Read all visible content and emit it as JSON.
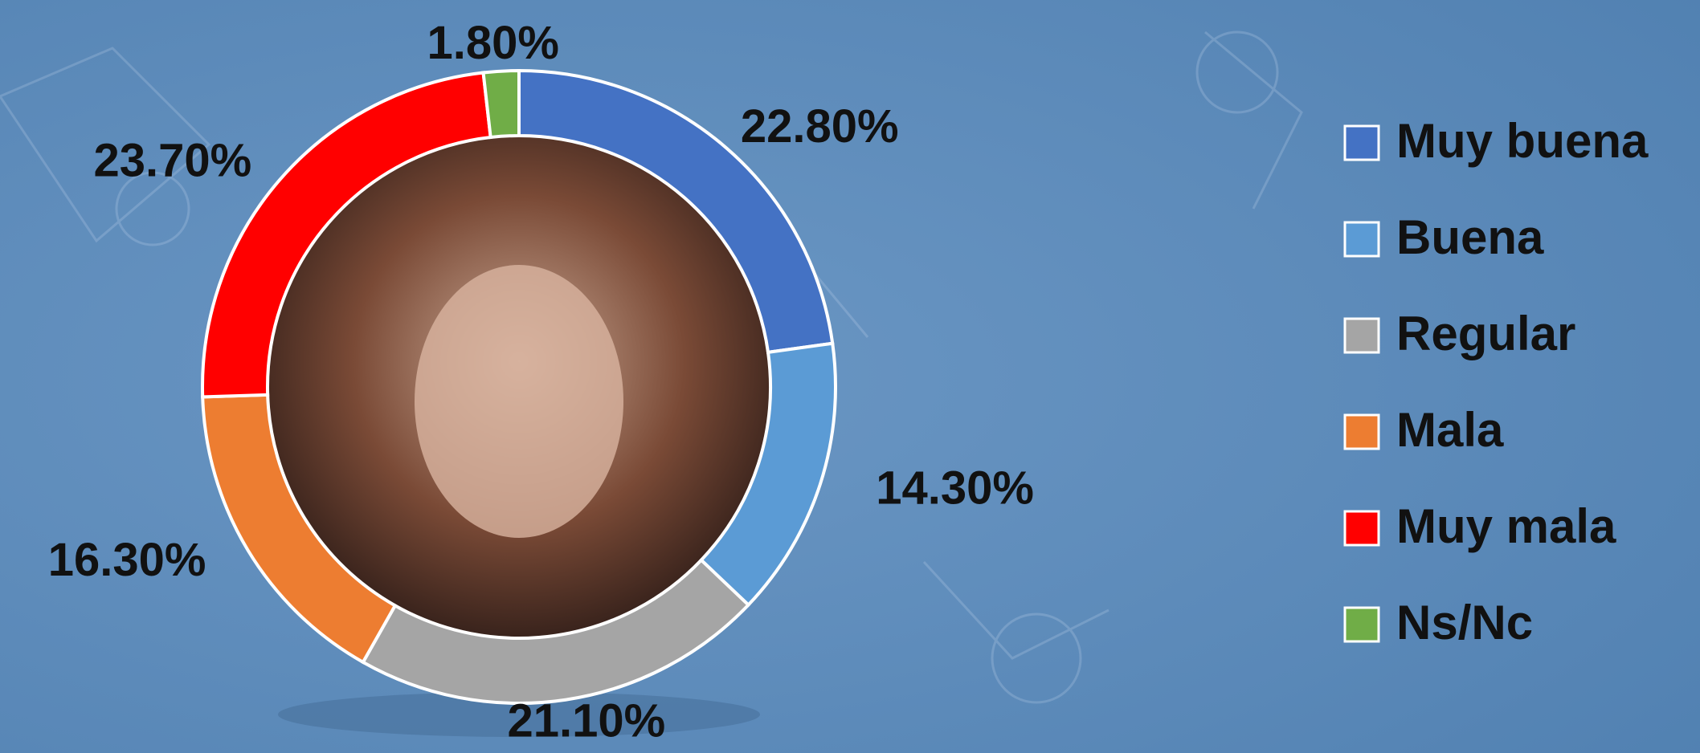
{
  "chart_data": {
    "type": "donut",
    "categories": [
      "Muy buena",
      "Buena",
      "Regular",
      "Mala",
      "Muy mala",
      "Ns/Nc"
    ],
    "values": [
      22.8,
      14.3,
      21.1,
      16.3,
      23.7,
      1.8
    ],
    "value_labels": [
      "22.80%",
      "14.30%",
      "21.10%",
      "16.30%",
      "23.70%",
      "1.80%"
    ],
    "colors": [
      "#4472c4",
      "#5b9bd5",
      "#a5a5a5",
      "#ed7d31",
      "#ff0000",
      "#70ad47"
    ],
    "legend": "right"
  }
}
